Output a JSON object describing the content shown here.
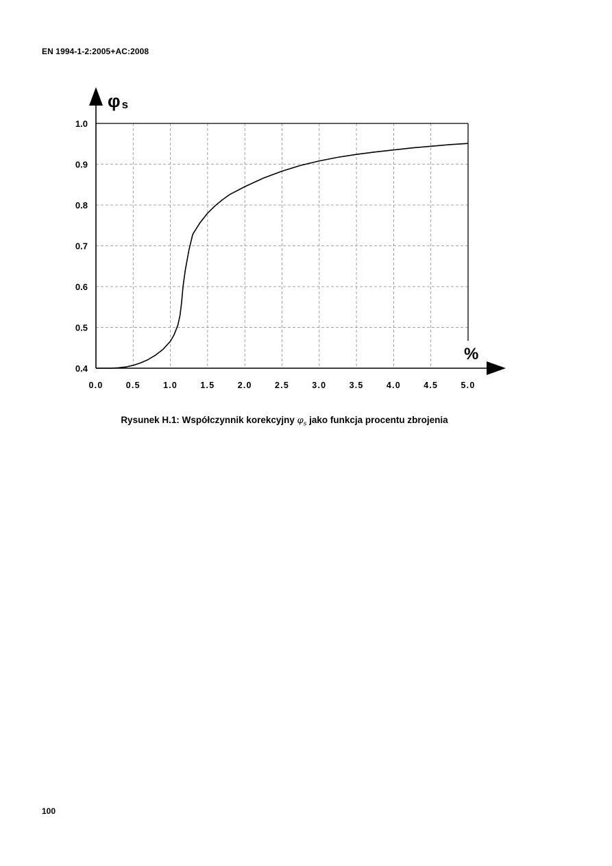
{
  "header": {
    "standard": "EN 1994-1-2:2005+AC:2008"
  },
  "chart_data": {
    "type": "line",
    "ylabel_symbol": "φ",
    "ylabel_subscript": "s",
    "xlabel": "%",
    "xlim": [
      0.0,
      5.0
    ],
    "ylim": [
      0.4,
      1.0
    ],
    "x_ticks": [
      "0.0",
      "0.5",
      "1.0",
      "1.5",
      "2.0",
      "2.5",
      "3.0",
      "3.5",
      "4.0",
      "4.5",
      "5.0"
    ],
    "y_ticks": [
      "0.4",
      "0.5",
      "0.6",
      "0.7",
      "0.8",
      "0.9",
      "1.0"
    ],
    "grid": true,
    "series": [
      {
        "x": [
          0.0,
          0.2,
          0.3,
          0.4,
          0.5,
          0.6,
          0.7,
          0.8,
          0.9,
          1.0,
          1.05,
          1.1,
          1.13,
          1.15,
          1.17,
          1.2,
          1.25,
          1.3,
          1.4,
          1.5,
          1.6,
          1.7,
          1.8,
          2.0,
          2.25,
          2.5,
          2.75,
          3.0,
          3.25,
          3.5,
          3.75,
          4.0,
          4.25,
          4.5,
          4.75,
          5.0
        ],
        "y": [
          0.4,
          0.4,
          0.401,
          0.403,
          0.407,
          0.413,
          0.421,
          0.432,
          0.446,
          0.466,
          0.482,
          0.505,
          0.53,
          0.56,
          0.6,
          0.64,
          0.69,
          0.728,
          0.757,
          0.78,
          0.798,
          0.813,
          0.826,
          0.845,
          0.866,
          0.883,
          0.897,
          0.908,
          0.917,
          0.924,
          0.93,
          0.935,
          0.94,
          0.944,
          0.948,
          0.951
        ]
      }
    ]
  },
  "caption": {
    "prefix": "Rysunek H.1: Współczynnik korekcyjny ",
    "symbol": "φ",
    "symbol_sub": "s",
    "suffix": " jako funkcja procentu zbrojenia"
  },
  "footer": {
    "page_number": "100"
  }
}
